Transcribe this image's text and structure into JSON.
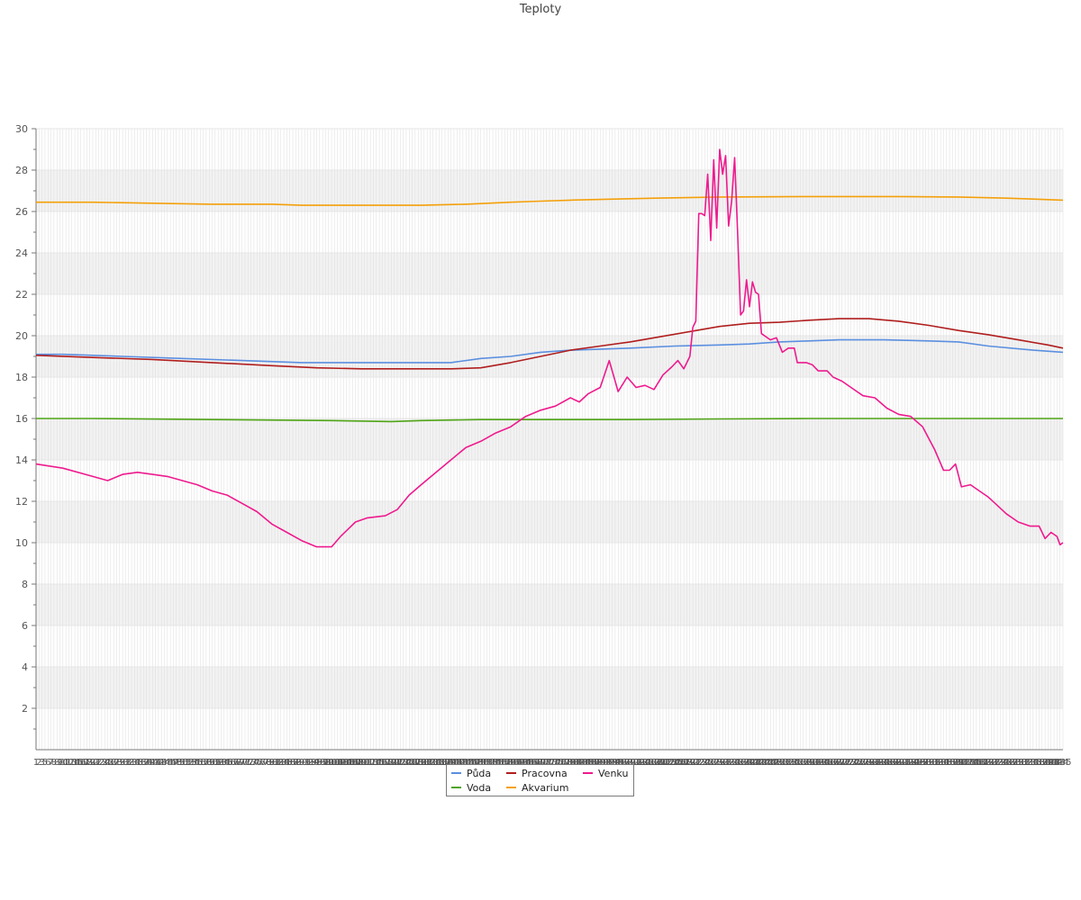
{
  "chart_data": {
    "type": "line",
    "title": "Teploty",
    "xlabel": "",
    "ylabel": "",
    "ylim": [
      0,
      30
    ],
    "y_ticks": [
      2,
      4,
      6,
      8,
      10,
      12,
      14,
      16,
      18,
      20,
      22,
      24,
      26,
      28,
      30
    ],
    "grid": true,
    "legend_position": "bottom-center",
    "x_start": 1,
    "x_end": 288,
    "x_note_ticks": [
      "1",
      "2",
      "3",
      "5",
      "6",
      "7",
      "8",
      "288"
    ],
    "series": [
      {
        "name": "Půda",
        "color": "#5b8fe0",
        "points": [
          [
            1,
            19.1
          ],
          [
            10,
            19.1
          ],
          [
            30,
            19.0
          ],
          [
            50,
            18.9
          ],
          [
            70,
            18.8
          ],
          [
            90,
            18.7
          ],
          [
            120,
            18.7
          ],
          [
            140,
            18.7
          ],
          [
            150,
            18.9
          ],
          [
            160,
            19.0
          ],
          [
            170,
            19.2
          ],
          [
            180,
            19.3
          ],
          [
            200,
            19.4
          ],
          [
            215,
            19.5
          ],
          [
            230,
            19.55
          ],
          [
            240,
            19.6
          ],
          [
            250,
            19.7
          ],
          [
            260,
            19.75
          ],
          [
            270,
            19.8
          ],
          [
            285,
            19.8
          ],
          [
            300,
            19.75
          ],
          [
            310,
            19.7
          ],
          [
            320,
            19.5
          ],
          [
            335,
            19.3
          ],
          [
            345,
            19.2
          ]
        ]
      },
      {
        "name": "Voda",
        "color": "#4fa516",
        "points": [
          [
            1,
            16.0
          ],
          [
            20,
            16.0
          ],
          [
            60,
            15.95
          ],
          [
            100,
            15.9
          ],
          [
            120,
            15.85
          ],
          [
            130,
            15.9
          ],
          [
            150,
            15.95
          ],
          [
            160,
            15.95
          ],
          [
            180,
            15.95
          ],
          [
            200,
            15.95
          ],
          [
            230,
            15.98
          ],
          [
            260,
            16.0
          ],
          [
            300,
            16.0
          ],
          [
            345,
            16.0
          ]
        ]
      },
      {
        "name": "Pracovna",
        "color": "#b01e1e",
        "points": [
          [
            1,
            19.05
          ],
          [
            20,
            18.95
          ],
          [
            40,
            18.85
          ],
          [
            60,
            18.7
          ],
          [
            80,
            18.55
          ],
          [
            95,
            18.45
          ],
          [
            110,
            18.4
          ],
          [
            140,
            18.4
          ],
          [
            150,
            18.45
          ],
          [
            160,
            18.7
          ],
          [
            170,
            19.0
          ],
          [
            180,
            19.3
          ],
          [
            190,
            19.5
          ],
          [
            200,
            19.7
          ],
          [
            210,
            19.95
          ],
          [
            220,
            20.2
          ],
          [
            230,
            20.45
          ],
          [
            240,
            20.6
          ],
          [
            250,
            20.65
          ],
          [
            260,
            20.75
          ],
          [
            270,
            20.82
          ],
          [
            280,
            20.82
          ],
          [
            290,
            20.7
          ],
          [
            300,
            20.5
          ],
          [
            310,
            20.25
          ],
          [
            320,
            20.05
          ],
          [
            330,
            19.8
          ],
          [
            340,
            19.55
          ],
          [
            345,
            19.4
          ]
        ]
      },
      {
        "name": "Akvarium",
        "color": "#f4a00a",
        "points": [
          [
            1,
            26.45
          ],
          [
            20,
            26.45
          ],
          [
            40,
            26.4
          ],
          [
            60,
            26.35
          ],
          [
            80,
            26.35
          ],
          [
            90,
            26.3
          ],
          [
            110,
            26.3
          ],
          [
            130,
            26.3
          ],
          [
            145,
            26.35
          ],
          [
            160,
            26.45
          ],
          [
            170,
            26.5
          ],
          [
            180,
            26.55
          ],
          [
            195,
            26.6
          ],
          [
            210,
            26.65
          ],
          [
            230,
            26.7
          ],
          [
            260,
            26.72
          ],
          [
            290,
            26.72
          ],
          [
            310,
            26.7
          ],
          [
            325,
            26.65
          ],
          [
            335,
            26.6
          ],
          [
            345,
            26.55
          ]
        ]
      },
      {
        "name": "Venku",
        "color": "#ee1a8e",
        "points": [
          [
            1,
            13.8
          ],
          [
            10,
            13.6
          ],
          [
            20,
            13.2
          ],
          [
            25,
            13.0
          ],
          [
            30,
            13.3
          ],
          [
            35,
            13.4
          ],
          [
            40,
            13.3
          ],
          [
            45,
            13.2
          ],
          [
            50,
            13.0
          ],
          [
            55,
            12.8
          ],
          [
            60,
            12.5
          ],
          [
            65,
            12.3
          ],
          [
            70,
            11.9
          ],
          [
            75,
            11.5
          ],
          [
            80,
            10.9
          ],
          [
            85,
            10.5
          ],
          [
            90,
            10.1
          ],
          [
            95,
            9.8
          ],
          [
            100,
            9.8
          ],
          [
            103,
            10.3
          ],
          [
            108,
            11.0
          ],
          [
            112,
            11.2
          ],
          [
            118,
            11.3
          ],
          [
            122,
            11.6
          ],
          [
            126,
            12.3
          ],
          [
            130,
            12.8
          ],
          [
            135,
            13.4
          ],
          [
            140,
            14.0
          ],
          [
            145,
            14.6
          ],
          [
            150,
            14.9
          ],
          [
            155,
            15.3
          ],
          [
            160,
            15.6
          ],
          [
            165,
            16.1
          ],
          [
            170,
            16.4
          ],
          [
            175,
            16.6
          ],
          [
            180,
            17.0
          ],
          [
            183,
            16.8
          ],
          [
            186,
            17.2
          ],
          [
            190,
            17.5
          ],
          [
            193,
            18.8
          ],
          [
            196,
            17.3
          ],
          [
            199,
            18.0
          ],
          [
            202,
            17.5
          ],
          [
            205,
            17.6
          ],
          [
            208,
            17.4
          ],
          [
            211,
            18.1
          ],
          [
            214,
            18.5
          ],
          [
            216,
            18.8
          ],
          [
            218,
            18.4
          ],
          [
            220,
            19.0
          ],
          [
            221,
            20.4
          ],
          [
            222,
            20.7
          ],
          [
            223,
            25.9
          ],
          [
            224,
            25.9
          ],
          [
            225,
            25.8
          ],
          [
            226,
            27.8
          ],
          [
            227,
            24.6
          ],
          [
            228,
            28.5
          ],
          [
            229,
            25.2
          ],
          [
            230,
            29.0
          ],
          [
            231,
            27.8
          ],
          [
            232,
            28.7
          ],
          [
            233,
            25.3
          ],
          [
            234,
            26.5
          ],
          [
            235,
            28.6
          ],
          [
            236,
            25.0
          ],
          [
            237,
            21.0
          ],
          [
            238,
            21.2
          ],
          [
            239,
            22.7
          ],
          [
            240,
            21.4
          ],
          [
            241,
            22.6
          ],
          [
            242,
            22.1
          ],
          [
            243,
            22.0
          ],
          [
            244,
            20.1
          ],
          [
            247,
            19.8
          ],
          [
            249,
            19.9
          ],
          [
            251,
            19.2
          ],
          [
            253,
            19.4
          ],
          [
            255,
            19.4
          ],
          [
            256,
            18.7
          ],
          [
            259,
            18.7
          ],
          [
            261,
            18.6
          ],
          [
            263,
            18.3
          ],
          [
            266,
            18.3
          ],
          [
            268,
            18.0
          ],
          [
            271,
            17.8
          ],
          [
            274,
            17.5
          ],
          [
            278,
            17.1
          ],
          [
            282,
            17.0
          ],
          [
            286,
            16.5
          ],
          [
            290,
            16.2
          ],
          [
            294,
            16.1
          ],
          [
            298,
            15.6
          ],
          [
            302,
            14.5
          ],
          [
            305,
            13.5
          ],
          [
            307,
            13.5
          ],
          [
            309,
            13.8
          ],
          [
            311,
            12.7
          ],
          [
            314,
            12.8
          ],
          [
            317,
            12.5
          ],
          [
            320,
            12.2
          ],
          [
            323,
            11.8
          ],
          [
            326,
            11.4
          ],
          [
            330,
            11.0
          ],
          [
            334,
            10.8
          ],
          [
            337,
            10.8
          ],
          [
            339,
            10.2
          ],
          [
            341,
            10.5
          ],
          [
            343,
            10.3
          ],
          [
            344,
            9.9
          ],
          [
            345,
            10.0
          ]
        ]
      }
    ]
  }
}
